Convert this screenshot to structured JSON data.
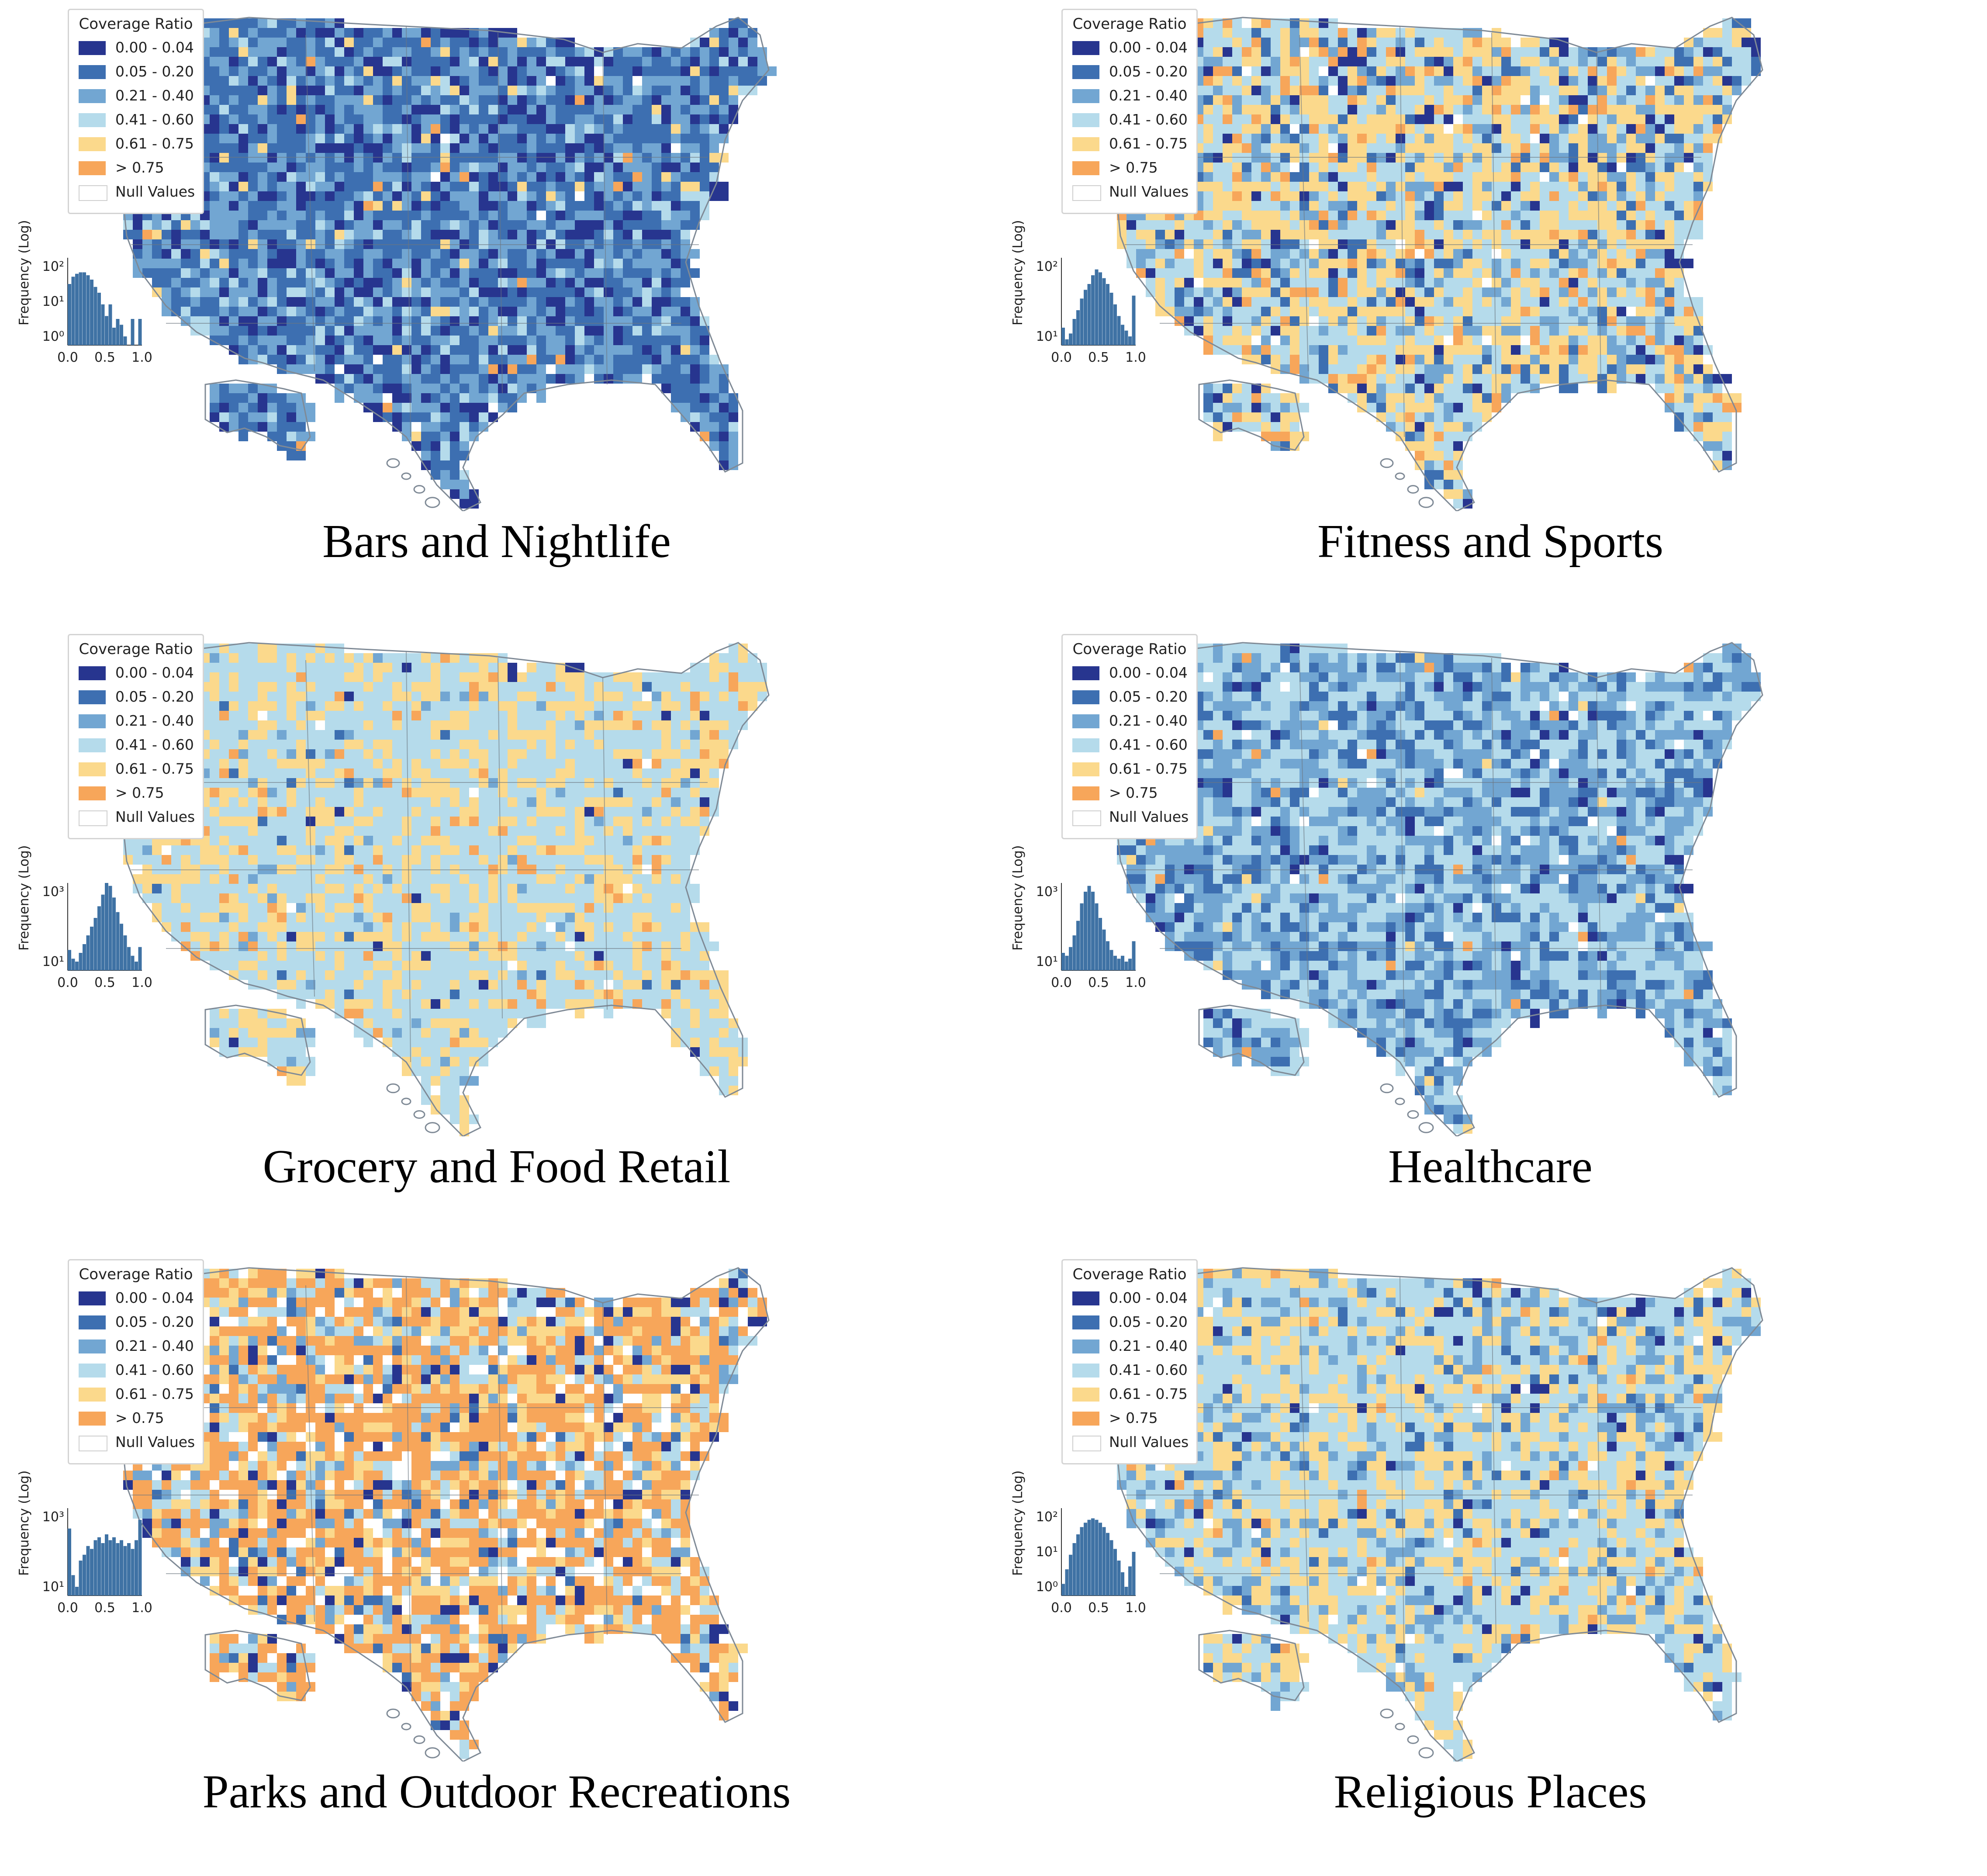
{
  "legend": {
    "title": "Coverage Ratio",
    "items": [
      {
        "label": "0.00 - 0.04",
        "color": "#27358f"
      },
      {
        "label": "0.05 - 0.20",
        "color": "#3d6fb1"
      },
      {
        "label": "0.21 - 0.40",
        "color": "#72a6d2"
      },
      {
        "label": "0.41 - 0.60",
        "color": "#b5dbeb"
      },
      {
        "label": "0.61 - 0.75",
        "color": "#fbd98c"
      },
      {
        "label": "> 0.75",
        "color": "#f7a65a"
      },
      {
        "label": "Null Values",
        "color": "#ffffff"
      }
    ]
  },
  "histogram": {
    "ylabel": "Frequency (Log)",
    "xticks": [
      "0.0",
      "0.5",
      "1.0"
    ],
    "bar_color": "#3f72a4"
  },
  "panels": [
    {
      "title": "Bars and Nightlife",
      "fill_mix": [
        0.18,
        0.38,
        0.32,
        0.08,
        0.02,
        0.01,
        0.01
      ],
      "hist_yticks": [
        "10²",
        "10¹",
        "10⁰"
      ],
      "hist_bins": [
        2.1,
        2.35,
        2.45,
        2.5,
        2.5,
        2.4,
        2.25,
        2.0,
        1.8,
        1.4,
        1.0,
        1.4,
        0.6,
        0.9,
        0.7,
        0.3,
        0.0,
        0.9,
        0.0,
        0.9
      ]
    },
    {
      "title": "Fitness and Sports",
      "fill_mix": [
        0.06,
        0.08,
        0.14,
        0.32,
        0.3,
        0.08,
        0.02
      ],
      "hist_yticks": [
        "10²",
        "10¹"
      ],
      "hist_bins": [
        0.6,
        0.2,
        0.4,
        0.9,
        1.2,
        1.6,
        1.9,
        2.1,
        2.4,
        2.6,
        2.5,
        2.3,
        2.1,
        1.8,
        1.4,
        1.0,
        0.7,
        0.5,
        0.3,
        1.7
      ]
    },
    {
      "title": "Grocery and Food Retail",
      "fill_mix": [
        0.01,
        0.01,
        0.03,
        0.6,
        0.3,
        0.04,
        0.01
      ],
      "hist_yticks": [
        "10³",
        "10¹"
      ],
      "hist_bins": [
        0.7,
        0.4,
        0.3,
        0.6,
        0.9,
        1.2,
        1.5,
        1.8,
        2.2,
        2.6,
        3.0,
        2.9,
        2.5,
        2.0,
        1.6,
        1.2,
        0.8,
        0.5,
        0.3,
        0.8
      ]
    },
    {
      "title": "Healthcare",
      "fill_mix": [
        0.03,
        0.2,
        0.35,
        0.38,
        0.01,
        0.01,
        0.02
      ],
      "hist_yticks": [
        "10³",
        "10¹"
      ],
      "hist_bins": [
        0.6,
        0.5,
        0.8,
        1.2,
        1.7,
        2.3,
        2.7,
        2.9,
        2.7,
        2.3,
        1.8,
        1.4,
        1.0,
        0.7,
        0.5,
        0.4,
        0.5,
        0.3,
        0.4,
        1.0
      ]
    },
    {
      "title": "Parks and Outdoor Recreations",
      "fill_mix": [
        0.06,
        0.03,
        0.07,
        0.14,
        0.16,
        0.44,
        0.1
      ],
      "hist_yticks": [
        "10³",
        "10¹"
      ],
      "hist_bins": [
        2.3,
        0.7,
        0.3,
        1.2,
        1.4,
        1.7,
        1.6,
        1.9,
        2.0,
        1.8,
        2.1,
        1.9,
        2.0,
        1.8,
        1.9,
        1.7,
        1.8,
        1.6,
        1.9,
        2.6
      ]
    },
    {
      "title": "Religious Places",
      "fill_mix": [
        0.02,
        0.04,
        0.16,
        0.45,
        0.3,
        0.02,
        0.01
      ],
      "hist_yticks": [
        "10²",
        "10¹",
        "10⁰"
      ],
      "hist_bins": [
        0.4,
        0.9,
        1.4,
        1.8,
        2.1,
        2.35,
        2.5,
        2.6,
        2.65,
        2.6,
        2.5,
        2.35,
        2.15,
        1.9,
        1.6,
        1.2,
        0.8,
        0.3,
        1.0,
        1.5
      ]
    }
  ]
}
